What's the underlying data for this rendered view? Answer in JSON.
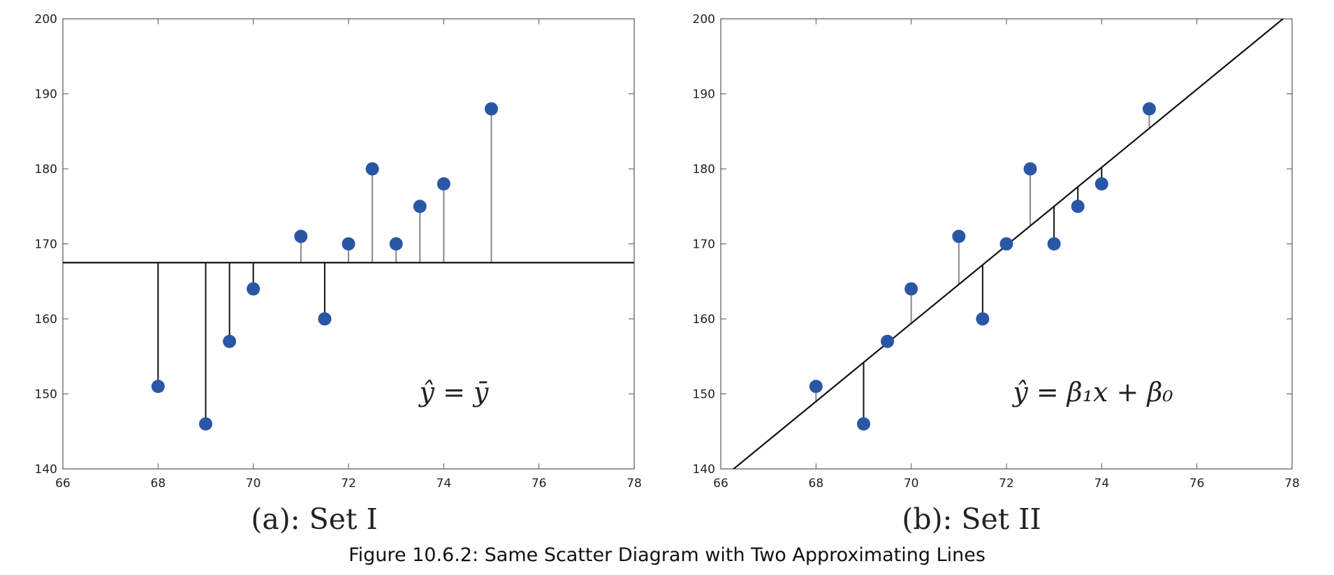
{
  "caption": "Figure 10.6.2: Same Scatter Diagram with Two Approximating Lines",
  "colors": {
    "marker": "#2a56a6",
    "line": "#111111",
    "residual_gray": "#888888",
    "residual_black": "#111111"
  },
  "chart_data": [
    {
      "type": "scatter",
      "subtitle": "(a): Set I",
      "annotation": "ŷ = ȳ",
      "xlim": [
        66,
        78
      ],
      "ylim": [
        140,
        200
      ],
      "xticks": [
        66,
        68,
        70,
        72,
        74,
        76,
        78
      ],
      "yticks": [
        140,
        150,
        160,
        170,
        180,
        190,
        200
      ],
      "grid": false,
      "points": [
        {
          "x": 68,
          "y": 151
        },
        {
          "x": 69,
          "y": 146
        },
        {
          "x": 69.5,
          "y": 157
        },
        {
          "x": 70,
          "y": 164
        },
        {
          "x": 71,
          "y": 171
        },
        {
          "x": 71.5,
          "y": 160
        },
        {
          "x": 72,
          "y": 170
        },
        {
          "x": 72.5,
          "y": 180
        },
        {
          "x": 73,
          "y": 170
        },
        {
          "x": 73.5,
          "y": 175
        },
        {
          "x": 74,
          "y": 178
        },
        {
          "x": 75,
          "y": 188
        }
      ],
      "fit_line": {
        "slope": 0,
        "intercept": 167.5
      }
    },
    {
      "type": "scatter",
      "subtitle": "(b): Set II",
      "annotation": "ŷ = β₁x + β₀",
      "xlim": [
        66,
        78
      ],
      "ylim": [
        140,
        200
      ],
      "xticks": [
        66,
        68,
        70,
        72,
        74,
        76,
        78
      ],
      "yticks": [
        140,
        150,
        160,
        170,
        180,
        190,
        200
      ],
      "grid": false,
      "points": [
        {
          "x": 68,
          "y": 151
        },
        {
          "x": 69,
          "y": 146
        },
        {
          "x": 69.5,
          "y": 157
        },
        {
          "x": 70,
          "y": 164
        },
        {
          "x": 71,
          "y": 171
        },
        {
          "x": 71.5,
          "y": 160
        },
        {
          "x": 72,
          "y": 170
        },
        {
          "x": 72.5,
          "y": 180
        },
        {
          "x": 73,
          "y": 170
        },
        {
          "x": 73.5,
          "y": 175
        },
        {
          "x": 74,
          "y": 178
        },
        {
          "x": 75,
          "y": 188
        }
      ],
      "fit_line": {
        "slope": 5.2,
        "intercept": -204.6
      }
    }
  ]
}
